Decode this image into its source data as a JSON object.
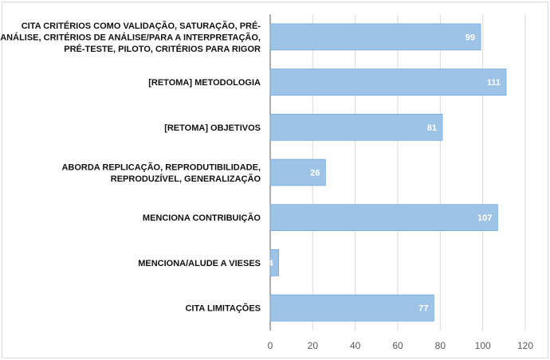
{
  "chart_data": {
    "type": "bar",
    "orientation": "horizontal",
    "categories": [
      [
        "CITA CRITÉRIOS COMO VALIDAÇÃO, SATURAÇÃO, PRÉ-",
        "ANÁLISE, CRITÉRIOS DE ANÁLISE/PARA A INTERPRETAÇÃO,",
        "PRÉ-TESTE, PILOTO, CRITÉRIOS PARA RIGOR"
      ],
      [
        "[RETOMA] METODOLOGIA"
      ],
      [
        "[RETOMA] OBJETIVOS"
      ],
      [
        "ABORDA REPLICAÇÃO, REPRODUTIBILIDADE,",
        "REPRODUZÍVEL, GENERALIZAÇÃO"
      ],
      [
        "MENCIONA CONTRIBUIÇÃO"
      ],
      [
        "MENCIONA/ALUDE A VIESES"
      ],
      [
        "CITA LIMITAÇÕES"
      ]
    ],
    "values": [
      99,
      111,
      81,
      26,
      107,
      4,
      77
    ],
    "data_labels": [
      "99",
      "111",
      "81",
      "26",
      "107",
      "4",
      "77"
    ],
    "xlim": [
      0,
      120
    ],
    "x_ticks": [
      0,
      20,
      40,
      60,
      80,
      100,
      120
    ],
    "x_tick_labels": [
      "0",
      "20",
      "40",
      "60",
      "80",
      "100",
      "120"
    ],
    "grid": "vertical",
    "legend": "none",
    "colors": {
      "bar_fill": "#9dc3e6",
      "bar_stroke": "#5b9bd5",
      "grid": "#d9d9d9",
      "axis": "#595959",
      "category_text": "#111111",
      "tick_text": "#595959",
      "data_label_text": "#ffffff"
    }
  }
}
